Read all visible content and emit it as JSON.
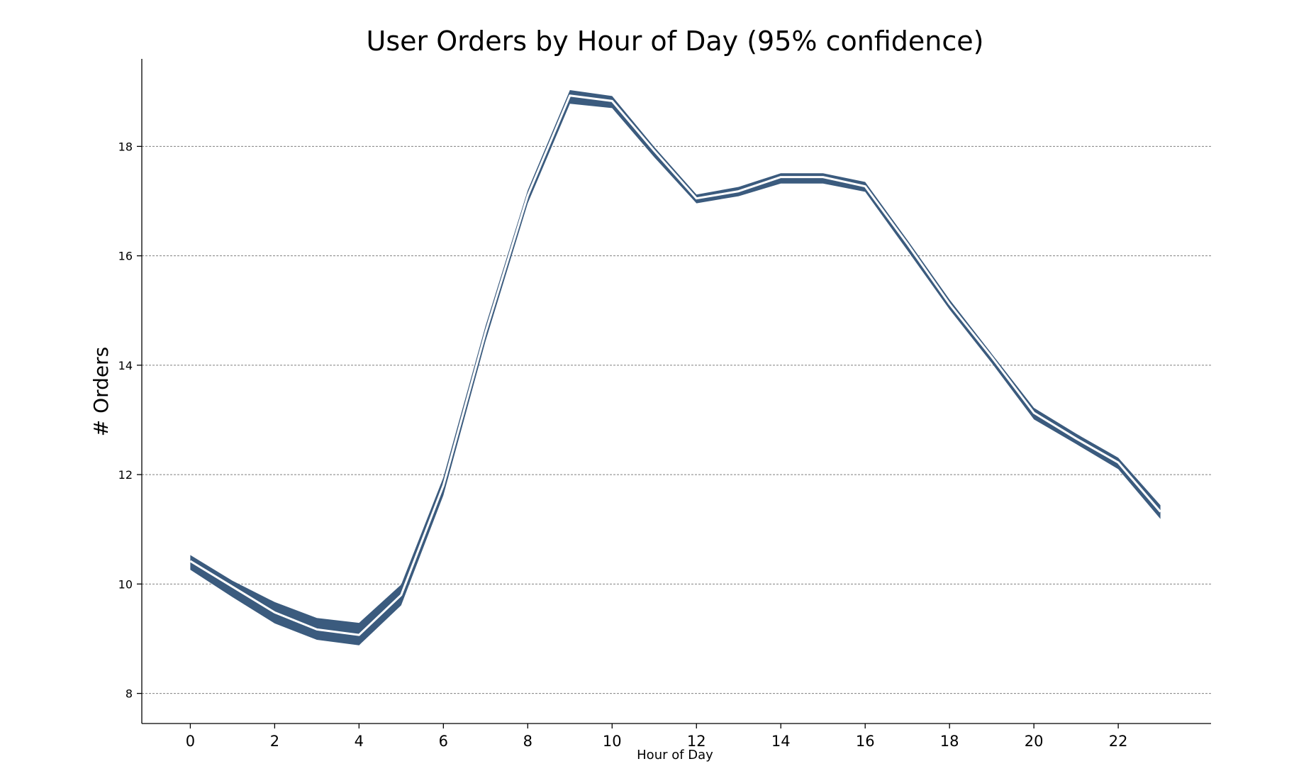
{
  "chart_data": {
    "type": "line",
    "title": "User Orders by Hour of Day (95% confidence)",
    "xlabel": "Hour of Day",
    "ylabel": "# Orders",
    "xlim": [
      -1.15,
      24.2
    ],
    "ylim": [
      7.45,
      19.6
    ],
    "x_ticks": [
      0,
      2,
      4,
      6,
      8,
      10,
      12,
      14,
      16,
      18,
      20,
      22
    ],
    "y_ticks": [
      8,
      10,
      12,
      14,
      16,
      18
    ],
    "grid": "horizontal dashed",
    "legend": "none",
    "color": "#3b5b7e",
    "x": [
      0,
      1,
      2,
      3,
      4,
      5,
      6,
      7,
      8,
      9,
      10,
      11,
      12,
      13,
      14,
      15,
      16,
      17,
      18,
      19,
      20,
      21,
      22,
      23
    ],
    "mean": [
      10.42,
      9.95,
      9.48,
      9.17,
      9.07,
      9.8,
      11.8,
      14.6,
      17.1,
      18.93,
      18.83,
      17.92,
      17.05,
      17.18,
      17.44,
      17.44,
      17.27,
      16.22,
      15.12,
      14.15,
      13.13,
      12.66,
      12.22,
      11.32
    ],
    "upper": [
      10.53,
      10.06,
      9.67,
      9.38,
      9.29,
      9.99,
      11.95,
      14.72,
      17.2,
      19.03,
      18.92,
      17.99,
      17.12,
      17.26,
      17.51,
      17.51,
      17.35,
      16.29,
      15.2,
      14.21,
      13.22,
      12.75,
      12.31,
      11.44
    ],
    "lower": [
      10.26,
      9.76,
      9.28,
      8.98,
      8.88,
      9.61,
      11.62,
      14.44,
      16.96,
      18.78,
      18.7,
      17.8,
      16.96,
      17.09,
      17.32,
      17.32,
      17.17,
      16.1,
      15.02,
      14.04,
      13.01,
      12.56,
      12.1,
      11.19
    ]
  }
}
